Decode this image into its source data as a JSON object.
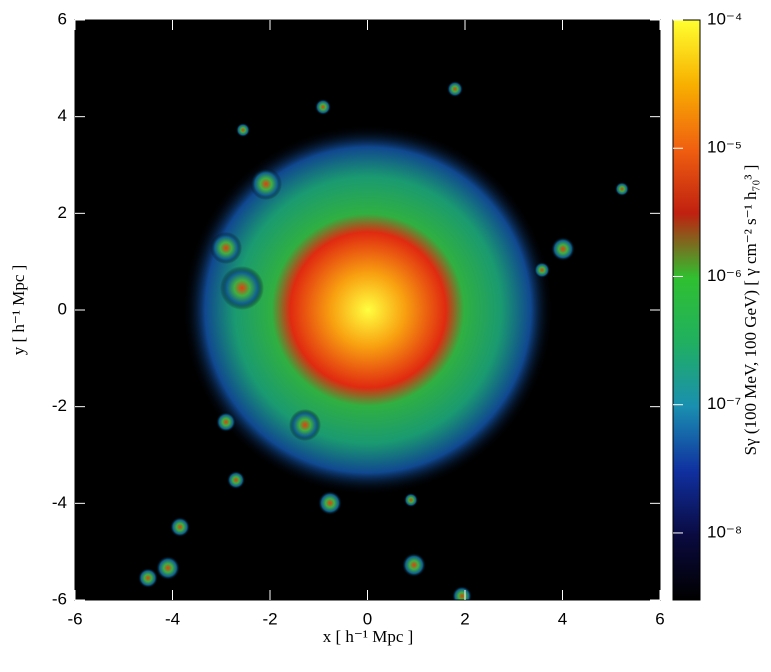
{
  "chart_data": {
    "type": "heatmap",
    "xlabel": "x [ h⁻¹ Mpc ]",
    "ylabel": "y [ h⁻¹ Mpc ]",
    "colorbar_label": "Sγ (100 MeV, 100 GeV) [ γ cm⁻² s⁻¹ h₇₀³ ]",
    "xlim": [
      -6,
      6
    ],
    "xticks": [
      -6,
      -4,
      -2,
      0,
      2,
      4,
      6
    ],
    "ylim": [
      -6,
      6
    ],
    "yticks": [
      -6,
      -4,
      -2,
      0,
      2,
      4,
      6
    ],
    "clim": [
      3e-09,
      0.0001
    ],
    "clog": true,
    "cticks": [
      {
        "value": 0.0001,
        "label": "10⁻⁴"
      },
      {
        "value": 1e-05,
        "label": "10⁻⁵"
      },
      {
        "value": 1e-06,
        "label": "10⁻⁶"
      },
      {
        "value": 1e-07,
        "label": "10⁻⁷"
      },
      {
        "value": 1e-08,
        "label": "10⁻⁸"
      }
    ],
    "colormap": [
      "#000000",
      "#0a0a40",
      "#1030a0",
      "#1a8fb0",
      "#20b060",
      "#30c030",
      "#c02010",
      "#f06010",
      "#f8b000",
      "#ffff30"
    ]
  }
}
